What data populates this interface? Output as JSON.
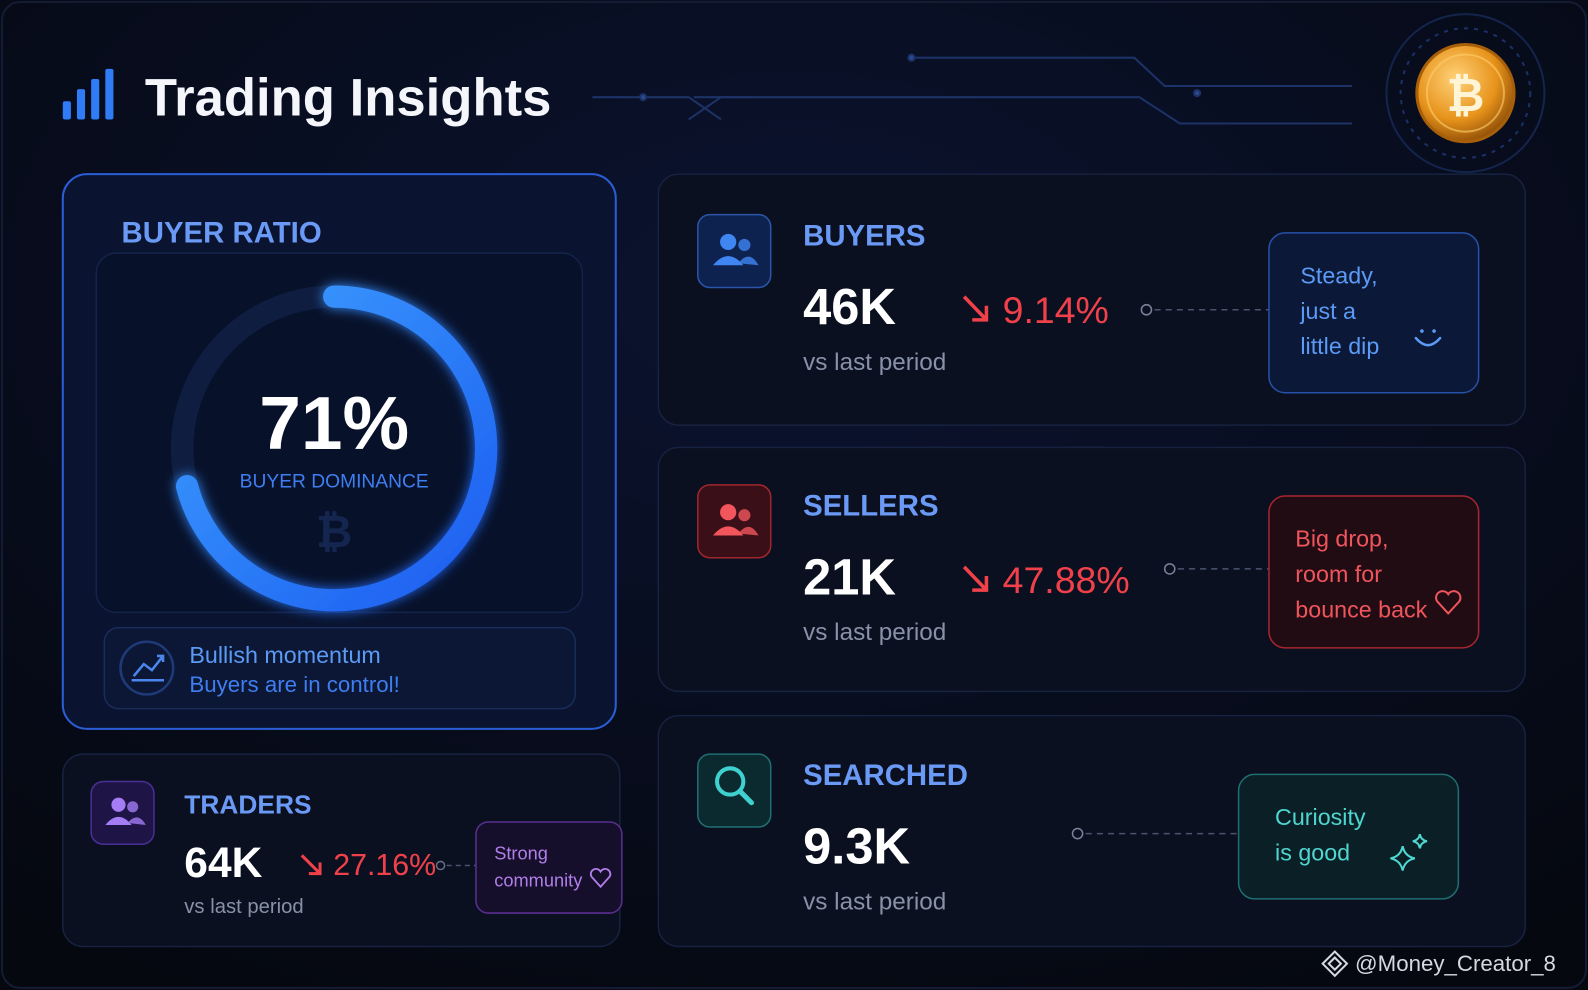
{
  "header": {
    "title": "Trading Insights"
  },
  "buyer_ratio": {
    "title": "BUYER RATIO",
    "value": 71,
    "value_label": "71%",
    "caption": "BUYER DOMINANCE",
    "note_title": "Bullish momentum",
    "note_text": "Buyers are in control!"
  },
  "traders": {
    "label": "TRADERS",
    "value": "64K",
    "change": "27.16%",
    "caption": "vs last period",
    "note": [
      "Strong",
      "community"
    ]
  },
  "metrics": [
    {
      "label": "BUYERS",
      "value": "46K",
      "change": "9.14%",
      "caption": "vs last period",
      "note": [
        "Steady,",
        "just a",
        "little dip"
      ]
    },
    {
      "label": "SELLERS",
      "value": "21K",
      "change": "47.88%",
      "caption": "vs last period",
      "note": [
        "Big drop,",
        "room for",
        "bounce back"
      ]
    },
    {
      "label": "SEARCHED",
      "value": "9.3K",
      "caption": "vs last period",
      "note": [
        "Curiosity",
        "is good"
      ]
    }
  ],
  "watermark": "@Money_Creator_8"
}
